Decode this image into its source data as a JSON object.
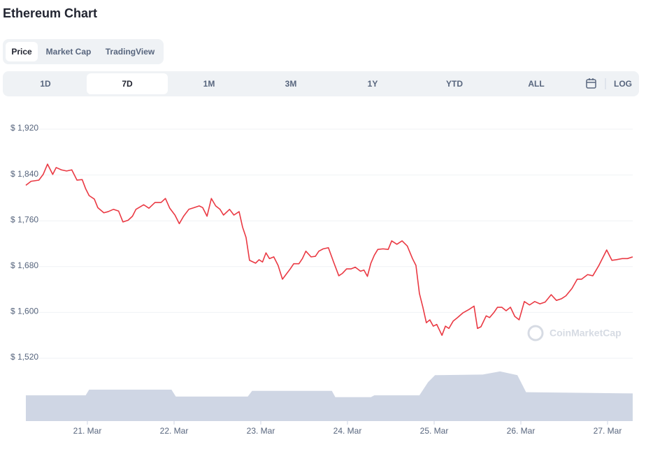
{
  "header": {
    "title": "Ethereum Chart"
  },
  "tabs": [
    "Price",
    "Market Cap",
    "TradingView"
  ],
  "ranges": [
    "1D",
    "7D",
    "1M",
    "3M",
    "1Y",
    "YTD",
    "ALL"
  ],
  "scale_toggle": "LOG",
  "watermark": "CoinMarketCap",
  "chart_data": {
    "type": "line",
    "xlim": [
      20.29,
      27.29
    ],
    "xticks": [
      {
        "value": 21,
        "label": "21. Mar"
      },
      {
        "value": 22,
        "label": "22. Mar"
      },
      {
        "value": 23,
        "label": "23. Mar"
      },
      {
        "value": 24,
        "label": "24. Mar"
      },
      {
        "value": 25,
        "label": "25. Mar"
      },
      {
        "value": 26,
        "label": "26. Mar"
      },
      {
        "value": 27,
        "label": "27. Mar"
      }
    ],
    "ylim": [
      1520,
      1920
    ],
    "yticks": [
      {
        "value": 1520,
        "label": "$ 1,520"
      },
      {
        "value": 1600,
        "label": "$ 1,600"
      },
      {
        "value": 1680,
        "label": "$ 1,680"
      },
      {
        "value": 1760,
        "label": "$ 1,760"
      },
      {
        "value": 1840,
        "label": "$ 1,840"
      },
      {
        "value": 1920,
        "label": "$ 1,920"
      }
    ],
    "y2lim": [
      0,
      100
    ],
    "grid": true,
    "series": [
      {
        "color": "#ea3943",
        "x": [
          20.29,
          20.35,
          20.44,
          20.49,
          20.54,
          20.6,
          20.64,
          20.7,
          20.76,
          20.82,
          20.88,
          20.94,
          20.98,
          21.02,
          21.08,
          21.12,
          21.19,
          21.24,
          21.3,
          21.36,
          21.41,
          21.47,
          21.52,
          21.56,
          21.65,
          21.71,
          21.78,
          21.85,
          21.9,
          21.95,
          22.01,
          22.06,
          22.11,
          22.17,
          22.23,
          22.29,
          22.33,
          22.38,
          22.43,
          22.48,
          22.53,
          22.57,
          22.64,
          22.69,
          22.75,
          22.79,
          22.83,
          22.87,
          22.94,
          22.98,
          23.02,
          23.06,
          23.1,
          23.15,
          23.2,
          23.25,
          23.3,
          23.34,
          23.38,
          23.44,
          23.48,
          23.52,
          23.58,
          23.63,
          23.67,
          23.72,
          23.78,
          23.84,
          23.9,
          23.94,
          23.99,
          24.04,
          24.09,
          24.15,
          24.19,
          24.23,
          24.27,
          24.31,
          24.35,
          24.41,
          24.47,
          24.51,
          24.57,
          24.63,
          24.69,
          24.75,
          24.79,
          24.83,
          24.87,
          24.91,
          24.95,
          24.99,
          25.03,
          25.09,
          25.13,
          25.17,
          25.22,
          25.27,
          25.33,
          25.4,
          25.46,
          25.5,
          25.54,
          25.6,
          25.64,
          25.69,
          25.73,
          25.78,
          25.83,
          25.88,
          25.93,
          25.98,
          26.04,
          26.1,
          26.16,
          26.22,
          26.28,
          26.35,
          26.41,
          26.47,
          26.52,
          26.59,
          26.65,
          26.7,
          26.77,
          26.83,
          26.9,
          26.95,
          26.99,
          27.05,
          27.1,
          27.17,
          27.23,
          27.29
        ],
        "values": [
          1822,
          1829,
          1831,
          1841,
          1859,
          1841,
          1853,
          1849,
          1847,
          1849,
          1831,
          1832,
          1816,
          1804,
          1798,
          1783,
          1774,
          1776,
          1780,
          1777,
          1758,
          1761,
          1768,
          1780,
          1788,
          1782,
          1792,
          1792,
          1799,
          1782,
          1770,
          1755,
          1768,
          1780,
          1783,
          1786,
          1783,
          1768,
          1799,
          1786,
          1780,
          1770,
          1780,
          1770,
          1776,
          1749,
          1731,
          1691,
          1686,
          1692,
          1688,
          1704,
          1694,
          1697,
          1682,
          1658,
          1668,
          1676,
          1685,
          1685,
          1694,
          1707,
          1697,
          1698,
          1707,
          1711,
          1713,
          1688,
          1664,
          1668,
          1676,
          1676,
          1679,
          1672,
          1674,
          1663,
          1686,
          1700,
          1710,
          1711,
          1710,
          1725,
          1719,
          1725,
          1716,
          1694,
          1682,
          1633,
          1609,
          1582,
          1587,
          1576,
          1579,
          1560,
          1576,
          1572,
          1585,
          1591,
          1599,
          1605,
          1611,
          1572,
          1575,
          1594,
          1591,
          1600,
          1609,
          1609,
          1603,
          1609,
          1593,
          1587,
          1619,
          1613,
          1619,
          1615,
          1618,
          1631,
          1621,
          1624,
          1629,
          1642,
          1658,
          1658,
          1666,
          1664,
          1682,
          1697,
          1709,
          1691,
          1692,
          1694,
          1694,
          1697
        ]
      },
      {
        "color": "#cfd6e4",
        "axis": "y2",
        "x": [
          20.29,
          20.98,
          21.02,
          21.97,
          22.02,
          22.85,
          22.9,
          23.82,
          23.86,
          24.27,
          24.31,
          24.83,
          24.93,
          25.01,
          25.56,
          25.76,
          25.96,
          26.06,
          27.29
        ],
        "values": [
          41,
          41,
          50,
          50,
          39,
          39,
          48,
          48,
          38,
          38,
          41,
          41,
          62,
          73,
          74,
          79,
          73,
          46,
          44
        ]
      }
    ]
  }
}
